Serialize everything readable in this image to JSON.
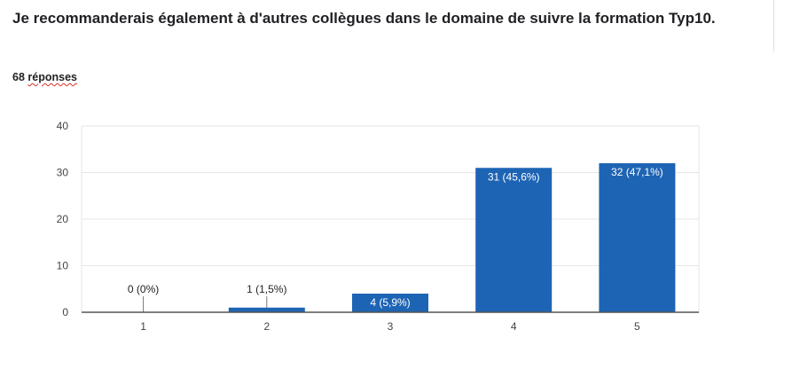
{
  "question": {
    "title": "Je recommanderais également à d'autres collègues dans le domaine de suivre la formation Typ10.",
    "count_number": "68",
    "count_word": "réponses"
  },
  "colors": {
    "bar": "#1e64b4",
    "grid": "#e6e6e6",
    "axis": "#555555",
    "tick_text": "#444444",
    "label_dark": "#222222",
    "label_light": "#ffffff"
  },
  "chart_data": {
    "type": "bar",
    "title": "",
    "xlabel": "",
    "ylabel": "",
    "categories": [
      "1",
      "2",
      "3",
      "4",
      "5"
    ],
    "values": [
      0,
      1,
      4,
      31,
      32
    ],
    "data_labels": [
      "0 (0%)",
      "1 (1,5%)",
      "4 (5,9%)",
      "31 (45,6%)",
      "32 (47,1%)"
    ],
    "ylim": [
      0,
      40
    ],
    "yticks": [
      "0",
      "10",
      "20",
      "30",
      "40"
    ],
    "grid": true,
    "legend": "none"
  }
}
